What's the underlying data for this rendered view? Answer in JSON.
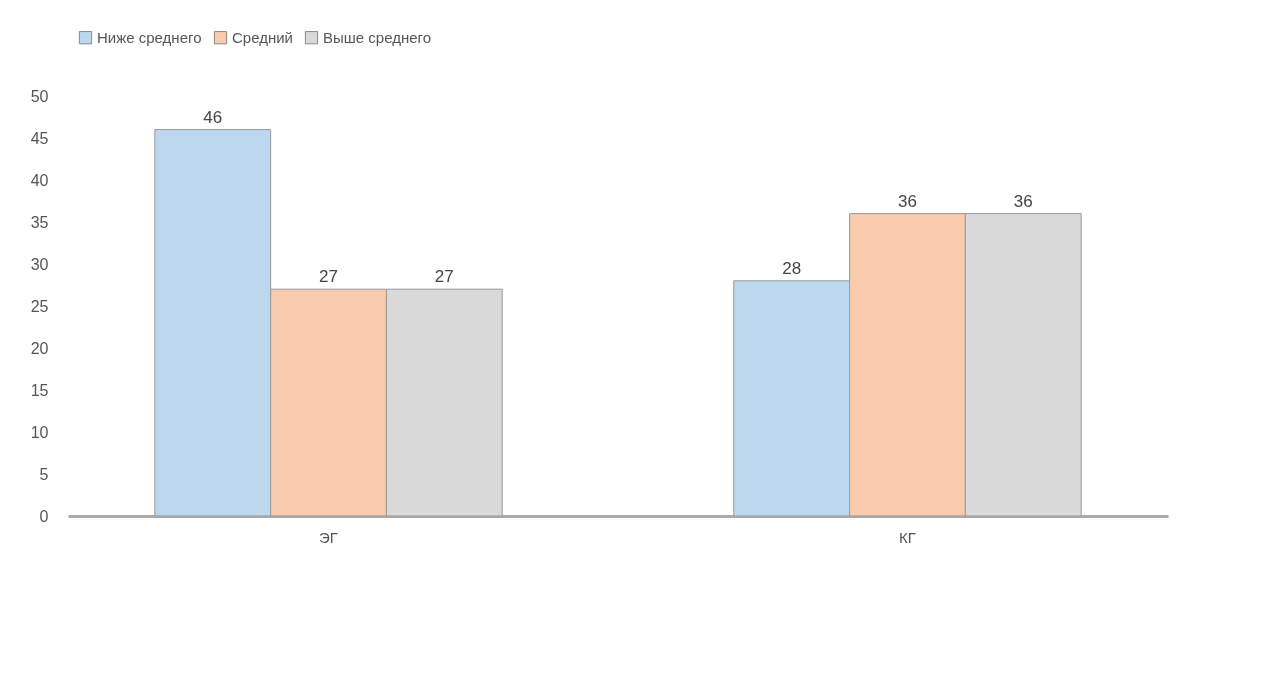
{
  "chart_data": {
    "type": "bar",
    "categories": [
      "ЭГ",
      "КГ"
    ],
    "series": [
      {
        "name": "Ниже среднего",
        "color": "#bdd7ee",
        "values": [
          46,
          28
        ]
      },
      {
        "name": "Средний",
        "color": "#f8cbad",
        "values": [
          27,
          36
        ]
      },
      {
        "name": "Выше среднего",
        "color": "#d9d9d9",
        "values": [
          27,
          36
        ]
      }
    ],
    "ylim": [
      0,
      50
    ],
    "yticks": [
      0,
      5,
      10,
      15,
      20,
      25,
      30,
      35,
      40,
      45,
      50
    ],
    "grid": false,
    "legend": "top",
    "data_labels": true
  }
}
